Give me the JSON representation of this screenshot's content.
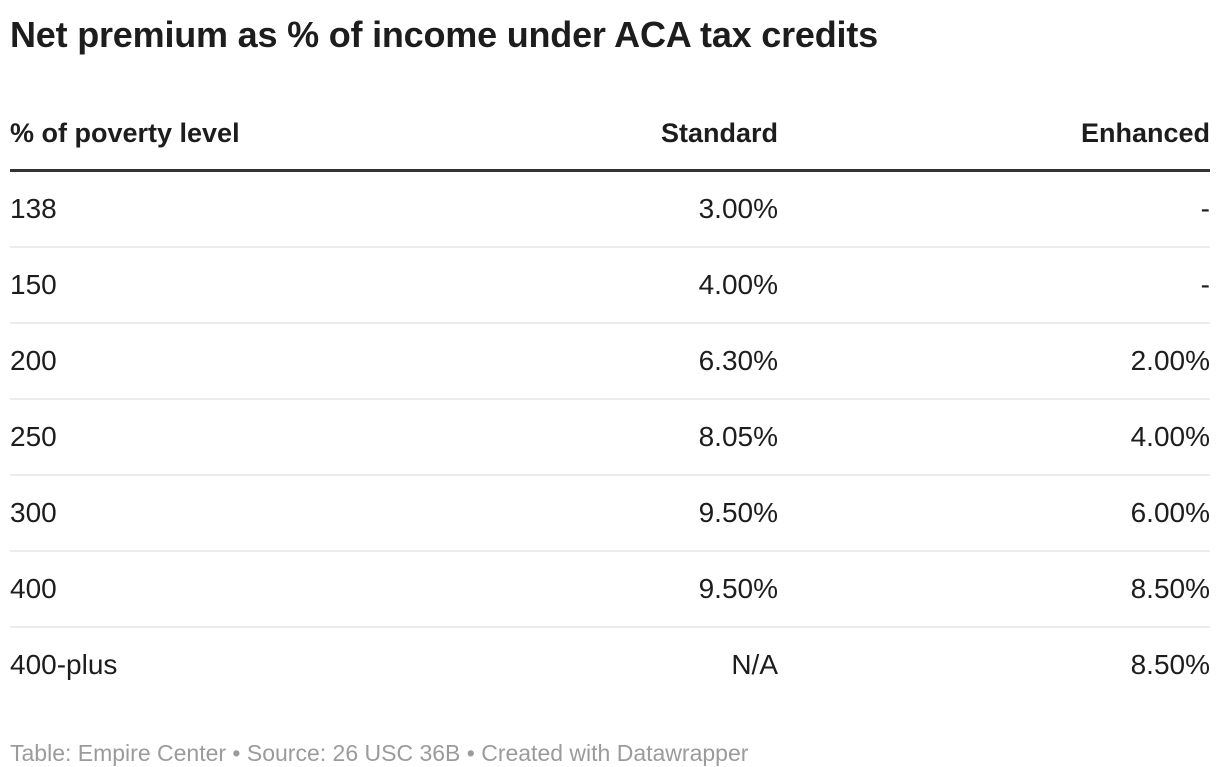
{
  "chart_data": {
    "type": "table",
    "title": "Net premium as % of income under ACA tax credits",
    "columns": [
      "% of poverty level",
      "Standard",
      "Enhanced"
    ],
    "rows": [
      [
        "138",
        "3.00%",
        "-"
      ],
      [
        "150",
        "4.00%",
        "-"
      ],
      [
        "200",
        "6.30%",
        "2.00%"
      ],
      [
        "250",
        "8.05%",
        "4.00%"
      ],
      [
        "300",
        "9.50%",
        "6.00%"
      ],
      [
        "400",
        "9.50%",
        "8.50%"
      ],
      [
        "400-plus",
        "N/A",
        "8.50%"
      ]
    ]
  },
  "footer": {
    "text": "Table: Empire Center • Source: 26 USC 36B • Created with Datawrapper"
  },
  "colors": {
    "background": "#ffffff",
    "text": "#1d1d1d",
    "header_rule": "#333333",
    "row_rule": "#ececec",
    "footer_text": "#9b9b9b"
  }
}
